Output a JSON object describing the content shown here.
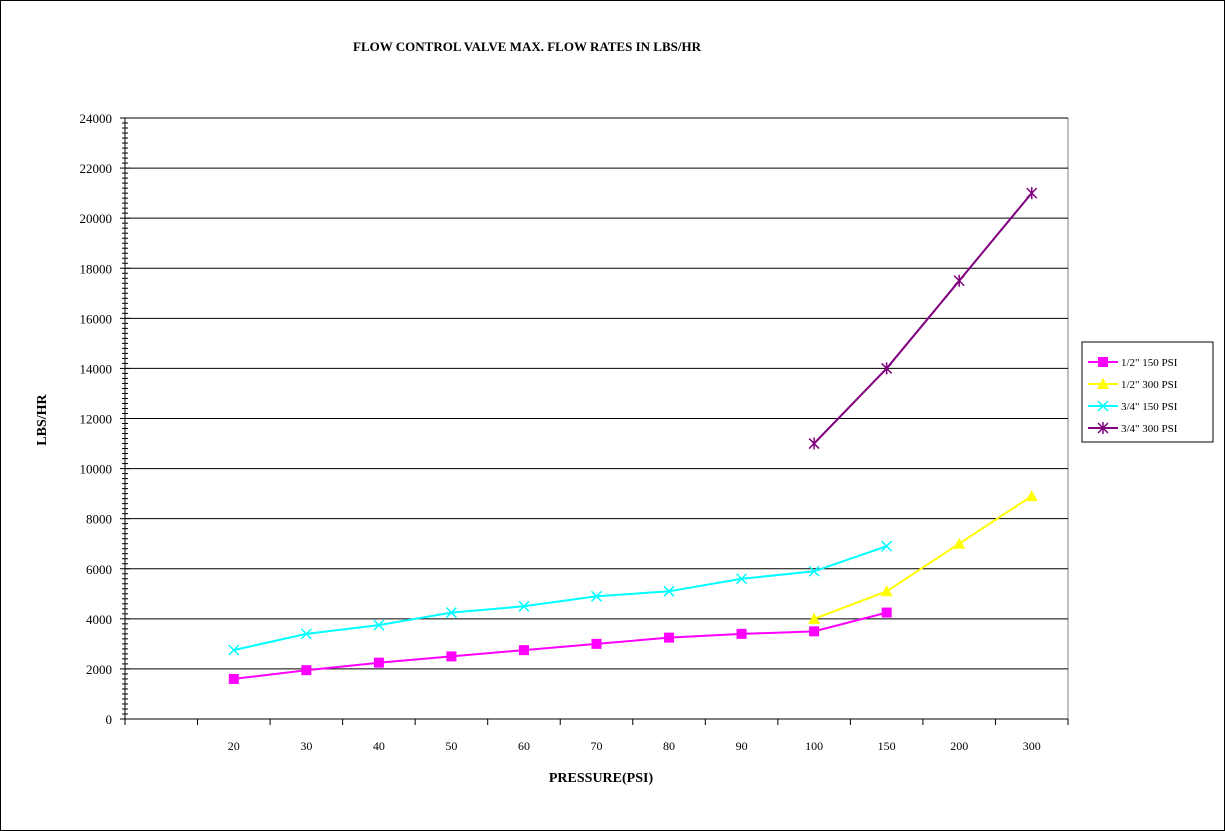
{
  "chart_data": {
    "type": "line",
    "title": "FLOW CONTROL VALVE MAX. FLOW RATES IN LBS/HR",
    "xlabel": "PRESSURE(PSI)",
    "ylabel": "LBS/HR",
    "ylim": [
      0,
      24000
    ],
    "ytick_step": 2000,
    "yticks": [
      "0",
      "2000",
      "4000",
      "6000",
      "8000",
      "10000",
      "12000",
      "14000",
      "16000",
      "18000",
      "20000",
      "22000",
      "24000"
    ],
    "categories": [
      "",
      "20",
      "30",
      "40",
      "50",
      "60",
      "70",
      "80",
      "90",
      "100",
      "150",
      "200",
      "300"
    ],
    "grid": true,
    "legend_position": "right",
    "series": [
      {
        "name": "1/2\" 150 PSI",
        "color": "#ff00ff",
        "marker": "square",
        "values": [
          null,
          1600,
          1950,
          2250,
          2500,
          2750,
          3000,
          3250,
          3400,
          3500,
          4250,
          null,
          null
        ]
      },
      {
        "name": "1/2\" 300 PSI",
        "color": "#ffff00",
        "marker": "triangle",
        "values": [
          null,
          null,
          null,
          null,
          null,
          null,
          null,
          null,
          null,
          4000,
          5100,
          7000,
          8900
        ]
      },
      {
        "name": "3/4\" 150 PSI",
        "color": "#00ffff",
        "marker": "x",
        "values": [
          null,
          2750,
          3400,
          3750,
          4250,
          4500,
          4900,
          5100,
          5600,
          5900,
          6900,
          null,
          null
        ]
      },
      {
        "name": "3/4\" 300 PSI",
        "color": "#800080",
        "marker": "asterisk",
        "values": [
          null,
          null,
          null,
          null,
          null,
          null,
          null,
          null,
          null,
          11000,
          14000,
          17500,
          21000
        ]
      }
    ]
  }
}
